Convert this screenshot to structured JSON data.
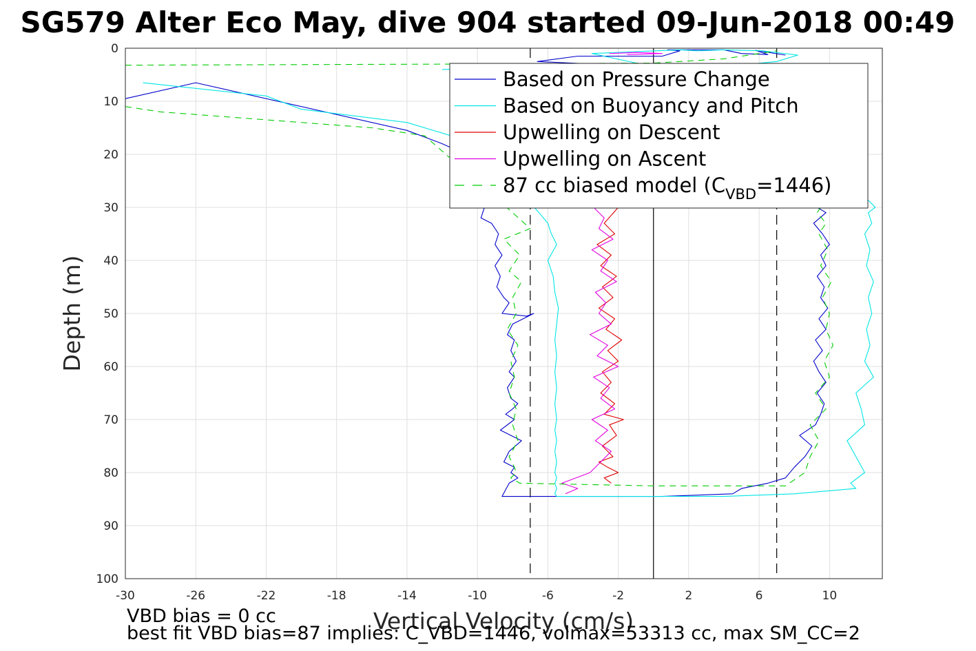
{
  "chart_data": {
    "type": "line",
    "title": "SG579 Alter Eco May, dive 904 started 09-Jun-2018 00:49",
    "xlabel": "Vertical Velocity (cm/s)",
    "ylabel": "Depth (m)",
    "xlim": [
      -30,
      13
    ],
    "ylim": [
      0,
      100
    ],
    "y_reversed": true,
    "grid": true,
    "legend_position": "top-right",
    "x_ticks": [
      -30,
      -26,
      -22,
      -18,
      -14,
      -10,
      -6,
      -2,
      2,
      6,
      10
    ],
    "x_tick_labels": [
      "-30",
      "-26",
      "-22",
      "-18",
      "-14",
      "-10",
      "-6",
      "-2",
      "2",
      "6",
      "10"
    ],
    "y_ticks": [
      0,
      10,
      20,
      30,
      40,
      50,
      60,
      70,
      80,
      90,
      100
    ],
    "y_tick_labels": [
      "0",
      "10",
      "20",
      "30",
      "40",
      "50",
      "60",
      "70",
      "80",
      "90",
      "100"
    ],
    "legend": {
      "items": [
        {
          "label": "Based on Pressure Change",
          "color": "#0000cc",
          "dash": "solid"
        },
        {
          "label": "Based on Buoyancy and Pitch",
          "color": "#00e5e5",
          "dash": "solid"
        },
        {
          "label": "Upwelling on Descent",
          "color": "#e00000",
          "dash": "solid"
        },
        {
          "label": "Upwelling on Ascent",
          "color": "#e000e0",
          "dash": "solid"
        }
      ],
      "model_label_prefix": "87 cc biased model (C",
      "model_label_sub": "VBD",
      "model_label_suffix": "=1446)",
      "model_color": "#00cc00"
    },
    "reference_lines": {
      "zero_x": 0,
      "target_dashed_x": [
        -7,
        7
      ]
    },
    "series": [
      {
        "name": "Based on Pressure Change",
        "color": "#0000cc",
        "x": [
          -30,
          -26,
          -14,
          -12,
          -10,
          -9.5,
          -9.8,
          -9.2,
          -8.8,
          -9.0,
          -8.6,
          -9.0,
          -8.7,
          -8.9,
          -8.5,
          -8.2,
          -8.4,
          -8.6,
          -7.2,
          -6.8,
          -8.0,
          -8.3,
          -7.9,
          -8.1,
          -7.8,
          -8.2,
          -7.9,
          -8.3,
          -8.1,
          -7.7,
          -8.0,
          -8.4,
          -7.9,
          -8.7,
          -7.5,
          -8.2,
          -8.5,
          -7.9,
          -8.1,
          -7.7,
          -8.2,
          -8.6,
          -3.0,
          -1.8,
          -2.6,
          -1.5,
          0.5,
          4.5,
          5.0,
          6.5,
          7.5,
          8.0,
          8.6,
          9.0,
          8.3,
          9.2,
          9.5,
          9.7,
          9.3,
          9.8,
          9.4,
          9.1,
          9.6,
          9.2,
          9.8,
          9.4,
          9.9,
          9.5,
          9.7,
          9.3,
          9.8,
          9.5,
          10.0,
          9.6,
          9.1,
          9.8,
          9.3,
          9.6,
          9.2,
          9.5,
          9.7,
          9.2,
          9.5
        ],
        "y": [
          9.5,
          6.5,
          15.5,
          18,
          21,
          29,
          32,
          33,
          35,
          37,
          39,
          41,
          43,
          45,
          47,
          48,
          49,
          50,
          50.5,
          50,
          52,
          54,
          55,
          57,
          59,
          61,
          62,
          64,
          66,
          67,
          68,
          69,
          70,
          72,
          74,
          76,
          78,
          79,
          80,
          81,
          82,
          84.5,
          84.5,
          84.5,
          84.5,
          84.5,
          84.5,
          84,
          83,
          82,
          81,
          79,
          77,
          75,
          73,
          71,
          69,
          67,
          65,
          63,
          61,
          59,
          57,
          55,
          53,
          51,
          49,
          47,
          45,
          43,
          41,
          39,
          37,
          35,
          33,
          31,
          30,
          28,
          26,
          24,
          22,
          20,
          18
        ]
      },
      {
        "name": "Based on Buoyancy and Pitch",
        "color": "#00e5e5",
        "x": [
          -29,
          -22,
          -20,
          -14,
          -12,
          -10,
          -6.5,
          -6.0,
          -5.8,
          -5.5,
          -6.0,
          -5.7,
          -5.6,
          -5.4,
          -5.5,
          -5.6,
          -5.5,
          -5.6,
          -5.5,
          -5.6,
          -5.5,
          -5.6,
          -5.5,
          -5.6,
          -5.5,
          -5.6,
          -5.5,
          -5.6,
          -5.5,
          -5.6,
          -5.5,
          -5.3,
          -1.0,
          -0.5,
          4.0,
          8.0,
          11.5,
          11.2,
          12.0,
          11.5,
          11.0,
          12.0,
          11.8,
          11.5,
          12.5,
          12.0,
          12.3,
          12.1,
          12.4,
          12.2,
          12.5,
          12.1,
          12.3,
          12.0,
          12.4,
          12.2,
          12.6,
          12.0,
          11.8,
          11.5,
          11.7,
          11.3,
          11.5,
          11.2,
          11.6,
          11.3,
          11.5,
          11.2
        ],
        "y": [
          6.5,
          9,
          11.5,
          14,
          16,
          18,
          31,
          33,
          35,
          37,
          40,
          43,
          46,
          49,
          52,
          55,
          58,
          61,
          64,
          67,
          70,
          72,
          74,
          76,
          78,
          80,
          81,
          82,
          83,
          84,
          84.5,
          84.5,
          84.5,
          84.5,
          84.5,
          84,
          83,
          82,
          80,
          77,
          74,
          71,
          68,
          65,
          62,
          59,
          56,
          53,
          50,
          47,
          44,
          41,
          38,
          35,
          33,
          31,
          30,
          28,
          26,
          24,
          22,
          20,
          18,
          16,
          14,
          12,
          10,
          8
        ]
      },
      {
        "name": "Upwelling on Descent",
        "color": "#e00000",
        "x": [
          -2.0,
          -2.8,
          -2.2,
          -3.2,
          -2.4,
          -3.0,
          -2.1,
          -2.9,
          -2.3,
          -3.1,
          -2.2,
          -2.7,
          -1.8,
          -2.6,
          -2.0,
          -2.9,
          -2.4,
          -3.0,
          -2.2,
          -2.8,
          -1.7,
          -2.5,
          -2.1,
          -2.9,
          -2.3,
          -3.1,
          -2.6,
          -2.0,
          -2.8,
          -2.4
        ],
        "y": [
          30,
          33,
          35,
          37,
          39,
          41,
          43,
          45,
          47,
          49,
          51,
          53,
          55,
          57,
          59,
          61,
          63,
          65,
          67,
          69,
          70,
          71,
          73,
          75,
          77,
          78,
          79,
          80,
          81,
          82
        ]
      },
      {
        "name": "Upwelling on Ascent",
        "color": "#e000e0",
        "x": [
          -5.0,
          -4.3,
          -5.2,
          -3.6,
          -3.0,
          -2.4,
          -3.3,
          -2.6,
          -3.5,
          -2.2,
          -3.0,
          -2.5,
          -3.4,
          -2.0,
          -3.2,
          -2.6,
          -3.6,
          -2.4,
          -3.1,
          -2.7,
          -3.3,
          -2.1,
          -3.0,
          -2.6,
          -3.5,
          -2.3,
          -3.1,
          -2.8,
          -3.4,
          -2.4,
          -3.0,
          -2.2
        ],
        "y": [
          84,
          83,
          82,
          80,
          78,
          76,
          74,
          72,
          70,
          68,
          66,
          64,
          62,
          60,
          58,
          56,
          54,
          52,
          50,
          48,
          46,
          44,
          42,
          40,
          38,
          36,
          34,
          32,
          30,
          28,
          26,
          24
        ]
      },
      {
        "name": "87 cc biased model (C_VBD=1446)",
        "color": "#00cc00",
        "dash": "9,7",
        "x": [
          -30,
          -28,
          -24,
          -16,
          -13,
          -8.0,
          -7.0,
          -8.5,
          -7.6,
          -8.2,
          -7.5,
          -8.0,
          -7.8,
          -8.3,
          -7.7,
          -8.1,
          -7.9,
          -8.2,
          -7.8,
          -8.0,
          -7.7,
          -8.2,
          -7.9,
          -7.8,
          -8.1,
          -7.6,
          0,
          3.5,
          5.5,
          7.5,
          8.6,
          8.9,
          9.4,
          8.9,
          9.8,
          9.2,
          10.0,
          9.7,
          10.2,
          9.8,
          10.0,
          9.6,
          10.1,
          9.5,
          9.9,
          9.4,
          9.8,
          9.3,
          9.7,
          9.2,
          9.5
        ],
        "y": [
          11,
          12,
          13,
          15,
          16.5,
          31,
          34,
          36,
          39,
          42,
          44,
          47,
          50,
          53,
          56,
          59,
          62,
          65,
          68,
          71,
          74,
          77,
          79,
          80,
          81,
          82,
          82.5,
          82.5,
          82.5,
          82.5,
          80,
          77,
          74,
          71,
          68,
          65,
          62,
          59,
          56,
          53,
          50,
          47,
          44,
          41,
          38,
          35,
          33,
          31,
          29,
          27,
          25
        ]
      },
      {
        "name": "Based on Pressure Change",
        "color": "#0000cc",
        "x": [
          -8.0,
          0,
          0,
          -6.6,
          -4.3,
          -3.2,
          0.5,
          1.5,
          0.8,
          4.0,
          5.0,
          6.5,
          5.8,
          7.5
        ],
        "y": [
          3.5,
          3.0,
          3.5,
          2.5,
          1.5,
          1.5,
          1.5,
          0.5,
          0.3,
          0.3,
          1.0,
          1.2,
          0.4,
          1.3
        ]
      },
      {
        "name": "Based on Buoyancy and Pitch",
        "color": "#00e5e5",
        "x": [
          -12,
          0,
          -3.5,
          1.5,
          2.5,
          4.0,
          6.2,
          8.2,
          7.0,
          5.5
        ],
        "y": [
          4.0,
          3.5,
          1.0,
          0.3,
          0.5,
          0.3,
          0.5,
          1.3,
          2.5,
          3.0
        ]
      },
      {
        "name": "Based on Buoyancy and Pitch",
        "color": "#ff00ff",
        "x": [
          -2.5,
          -1.0,
          0.5,
          -1.5
        ],
        "y": [
          1.0,
          0.8,
          1.0,
          1.2
        ]
      },
      {
        "name": "87 cc biased model (C_VBD=1446)",
        "color": "#00cc00",
        "dash": "9,7",
        "x": [
          -30,
          -12,
          0,
          4.0,
          6.0,
          7.0
        ],
        "y": [
          3.2,
          3.0,
          2.8,
          2.0,
          1.0,
          0.5
        ]
      }
    ]
  },
  "annotations": {
    "vbd_bias": "VBD bias = 0 cc",
    "best_fit": "best fit VBD bias=87 implies: C_VBD=1446, volmax=53313 cc, max SM_CC=2"
  }
}
